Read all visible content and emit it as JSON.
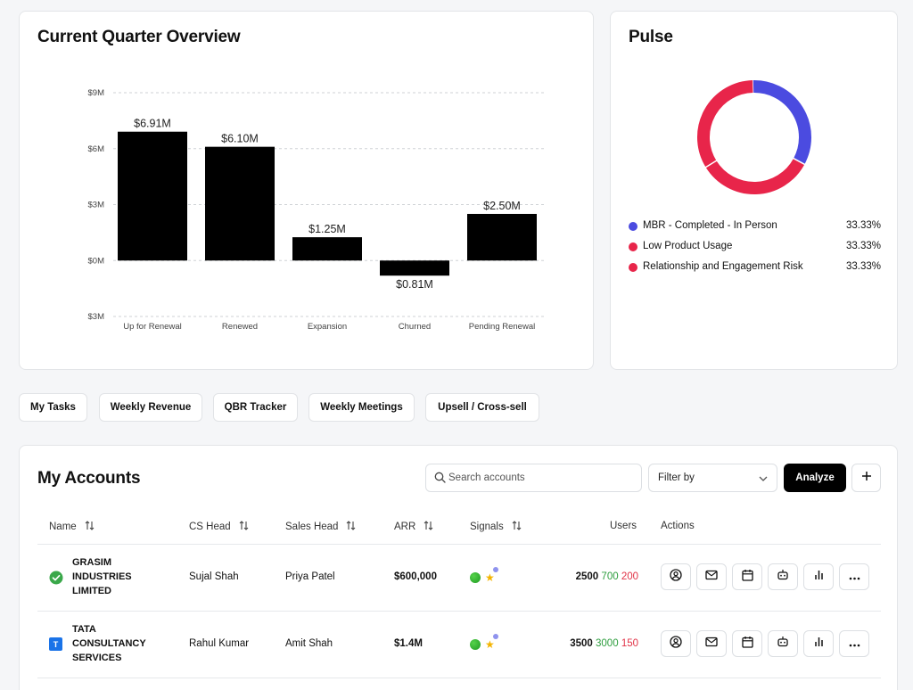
{
  "overview": {
    "title": "Current Quarter Overview"
  },
  "chart_data": {
    "type": "bar",
    "title": "Current Quarter Overview",
    "categories": [
      "Up for Renewal",
      "Renewed",
      "Expansion",
      "Churned",
      "Pending Renewal"
    ],
    "values": [
      6.91,
      6.1,
      1.25,
      -0.81,
      2.5
    ],
    "data_labels": [
      "$6.91M",
      "$6.10M",
      "$1.25M",
      "$0.81M",
      "$2.50M"
    ],
    "y_ticks": [
      {
        "value": 9,
        "label": "$9M"
      },
      {
        "value": 6,
        "label": "$6M"
      },
      {
        "value": 3,
        "label": "$3M"
      },
      {
        "value": 0,
        "label": "$0M"
      },
      {
        "value": -3,
        "label": "$3M"
      }
    ],
    "ylim": [
      -3,
      9
    ],
    "grid": true,
    "bar_color": "#000000"
  },
  "pulse": {
    "title": "Pulse",
    "chart_data": {
      "type": "pie",
      "donut": true,
      "slices": [
        {
          "label": "MBR - Completed - In Person",
          "value": 33.33,
          "pct_label": "33.33%",
          "color": "#4b4be0"
        },
        {
          "label": "Low Product Usage",
          "value": 33.33,
          "pct_label": "33.33%",
          "color": "#e8254a"
        },
        {
          "label": "Relationship and Engagement Risk",
          "value": 33.33,
          "pct_label": "33.33%",
          "color": "#e8254a"
        }
      ]
    }
  },
  "tabs": [
    "My Tasks",
    "Weekly Revenue",
    "QBR Tracker",
    "Weekly Meetings",
    "Upsell / Cross-sell"
  ],
  "accounts": {
    "title": "My Accounts",
    "search_placeholder": "Search accounts",
    "filter_label": "Filter by",
    "analyze_label": "Analyze",
    "columns": {
      "name": "Name",
      "cs_head": "CS Head",
      "sales_head": "Sales Head",
      "arr": "ARR",
      "signals": "Signals",
      "users": "Users",
      "actions": "Actions"
    },
    "rows": [
      {
        "name_lines": [
          "GRASIM",
          "INDUSTRIES",
          "LIMITED"
        ],
        "status_icon": "check-circle-icon",
        "cs_head": "Sujal Shah",
        "sales_head": "Priya Patel",
        "arr": "$600,000",
        "users_total": "2500",
        "users_green": "700",
        "users_red": "200"
      },
      {
        "name_lines": [
          "TATA",
          "CONSULTANCY",
          "SERVICES"
        ],
        "status_icon": "company-logo-icon",
        "logo_letter": "T",
        "cs_head": "Rahul Kumar",
        "sales_head": "Amit Shah",
        "arr": "$1.4M",
        "users_total": "3500",
        "users_green": "3000",
        "users_red": "150"
      }
    ],
    "action_icons": [
      "user-circle-icon",
      "mail-icon",
      "calendar-icon",
      "bot-icon",
      "bar-chart-icon",
      "more-icon"
    ]
  },
  "colors": {
    "primary": "#000000",
    "green": "#2e9e3f",
    "red": "#e13347",
    "donut_blue": "#4b4be0",
    "donut_red": "#e8254a"
  }
}
